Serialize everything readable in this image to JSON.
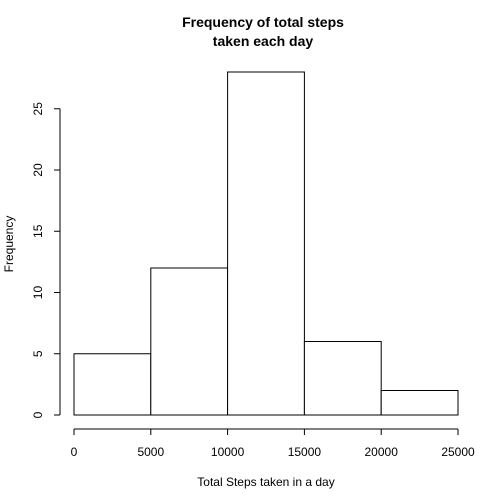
{
  "chart_data": {
    "type": "bar",
    "title_lines": [
      "Frequency of total steps",
      "taken each day"
    ],
    "xlabel": "Total Steps taken in a day",
    "ylabel": "Frequency",
    "bins": [
      {
        "from": 0,
        "to": 5000,
        "count": 5
      },
      {
        "from": 5000,
        "to": 10000,
        "count": 12
      },
      {
        "from": 10000,
        "to": 15000,
        "count": 28
      },
      {
        "from": 15000,
        "to": 20000,
        "count": 6
      },
      {
        "from": 20000,
        "to": 25000,
        "count": 2
      }
    ],
    "x_ticks": [
      0,
      5000,
      10000,
      15000,
      20000,
      25000
    ],
    "y_ticks": [
      0,
      5,
      10,
      15,
      20,
      25
    ],
    "xlim": [
      0,
      25000
    ],
    "ylim": [
      0,
      28
    ],
    "grid": false,
    "bar_fill": "#ffffff",
    "bar_stroke": "#000000"
  }
}
